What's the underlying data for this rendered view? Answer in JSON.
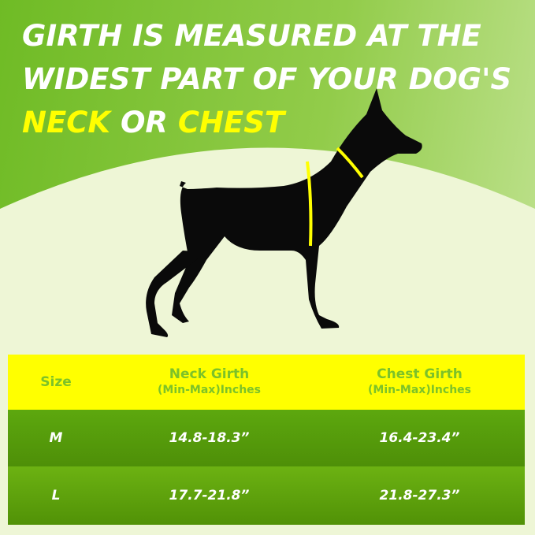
{
  "headline": {
    "line1": "GIRTH IS MEASURED AT THE",
    "line2": "WIDEST PART OF YOUR DOG'S",
    "highlight1": "NECK",
    "connector": "OR",
    "highlight2": "CHEST"
  },
  "colors": {
    "accent": "#ffff00",
    "green": "#5da80e",
    "header_text": "#7cc229"
  },
  "table": {
    "headers": [
      {
        "label": "Size",
        "sub": ""
      },
      {
        "label": "Neck Girth",
        "sub": "(Min-Max)Inches"
      },
      {
        "label": "Chest Girth",
        "sub": "(Min-Max)Inches"
      }
    ],
    "rows": [
      {
        "size": "M",
        "neck": "14.8-18.3”",
        "chest": "16.4-23.4”"
      },
      {
        "size": "L",
        "neck": "17.7-21.8”",
        "chest": "21.8-27.3”"
      }
    ]
  }
}
